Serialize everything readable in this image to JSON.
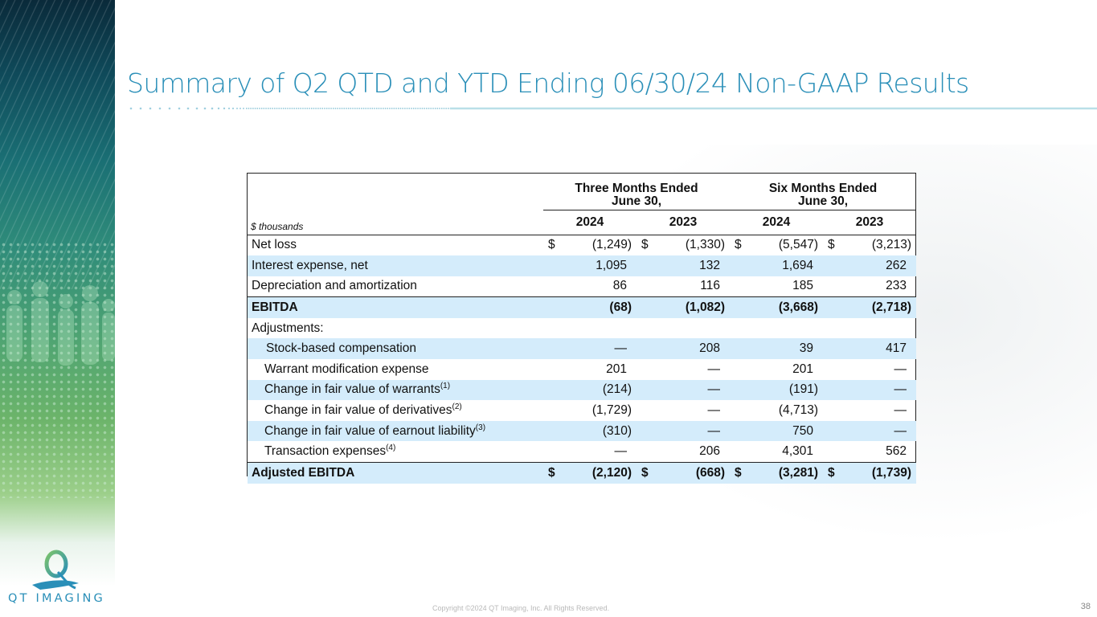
{
  "title": "Summary of Q2 QTD and YTD Ending 06/30/24 Non-GAAP Results",
  "brand": {
    "logo_text": "QT IMAGING",
    "accent_color": "#2a8fb8",
    "shade_color": "#d4ecfb"
  },
  "table": {
    "unit_label": "$ thousands",
    "group_headers": [
      {
        "line1": "Three Months Ended",
        "line2": "June 30,"
      },
      {
        "line1": "Six Months Ended",
        "line2": "June 30,"
      }
    ],
    "years": [
      "2024",
      "2023",
      "2024",
      "2023"
    ],
    "rows": [
      {
        "label": "Net loss",
        "values": [
          "(1,249)",
          "(1,330)",
          "(5,547)",
          "(3,213)"
        ]
      },
      {
        "label": "Interest expense, net",
        "values": [
          "1,095",
          "132",
          "1,694",
          "262"
        ]
      },
      {
        "label": "Depreciation and amortization",
        "values": [
          "86",
          "116",
          "185",
          "233"
        ]
      },
      {
        "label": "EBITDA",
        "values": [
          "(68)",
          "(1,082)",
          "(3,668)",
          "(2,718)"
        ]
      },
      {
        "label": "Adjustments:"
      },
      {
        "label": "Stock-based compensation",
        "values": [
          "—",
          "208",
          "39",
          "417"
        ]
      },
      {
        "label": "Warrant modification expense",
        "values": [
          "201",
          "—",
          "201",
          "—"
        ]
      },
      {
        "label": "Change in fair value of warrants",
        "note": "(1)",
        "values": [
          "(214)",
          "—",
          "(191)",
          "—"
        ]
      },
      {
        "label": "Change in fair value of derivatives",
        "note": "(2)",
        "values": [
          "(1,729)",
          "—",
          "(4,713)",
          "—"
        ]
      },
      {
        "label": "Change in fair value of earnout liability",
        "note": "(3)",
        "values": [
          "(310)",
          "—",
          "750",
          "—"
        ]
      },
      {
        "label": "Transaction expenses",
        "note": "(4)",
        "values": [
          "—",
          "206",
          "4,301",
          "562"
        ]
      },
      {
        "label": "Adjusted EBITDA",
        "values": [
          "(2,120)",
          "(668)",
          "(3,281)",
          "(1,739)"
        ]
      }
    ],
    "currency_symbol": "$"
  },
  "footer": {
    "copyright": "Copyright ©2024 QT Imaging, Inc. All Rights Reserved.",
    "page_number": "38"
  }
}
